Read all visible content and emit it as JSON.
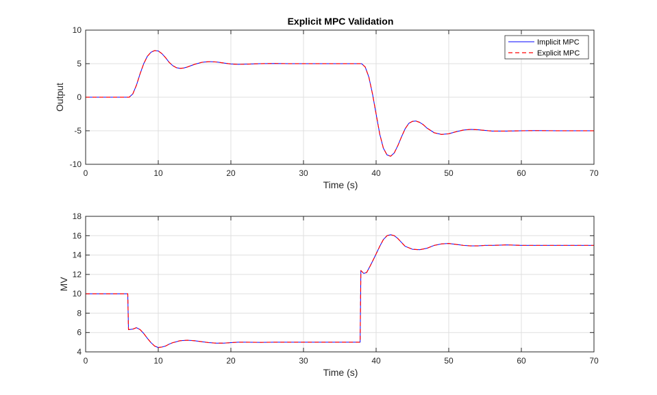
{
  "colors": {
    "background": "#ffffff",
    "axes_box": "#262626",
    "grid": "#dfdfdf",
    "implicit": "#0000ff",
    "explicit": "#ff0000"
  },
  "chart_data": [
    {
      "type": "line",
      "title": "Explicit MPC Validation",
      "xlabel": "Time (s)",
      "ylabel": "Output",
      "xlim": [
        0,
        70
      ],
      "ylim": [
        -10,
        10
      ],
      "xticks": [
        0,
        10,
        20,
        30,
        40,
        50,
        60,
        70
      ],
      "yticks": [
        -10,
        -5,
        0,
        5,
        10
      ],
      "xtick_labels": [
        "0",
        "10",
        "20",
        "30",
        "40",
        "50",
        "60",
        "70"
      ],
      "ytick_labels": [
        "-10",
        "-5",
        "0",
        "5",
        "10"
      ],
      "grid": true,
      "legend": {
        "placement": "top-right",
        "entries": [
          "Implicit MPC",
          "Explicit MPC"
        ]
      },
      "series": [
        {
          "name": "Implicit MPC",
          "style": "solid",
          "x": [
            0,
            6,
            6.5,
            7,
            7.5,
            8,
            8.5,
            9,
            9.5,
            10,
            10.5,
            11,
            11.5,
            12,
            12.5,
            13,
            13.5,
            14,
            15,
            16,
            17,
            18,
            19,
            20,
            21,
            22,
            24,
            26,
            28,
            30,
            32,
            34,
            36,
            38,
            38.5,
            39,
            39.5,
            40,
            40.5,
            41,
            41.5,
            42,
            42.5,
            43,
            43.5,
            44,
            44.5,
            45,
            45.5,
            46,
            46.5,
            47,
            48,
            49,
            50,
            51,
            52,
            53,
            54,
            55,
            56,
            58,
            60,
            62,
            65,
            70
          ],
          "y": [
            0,
            0,
            0.5,
            1.8,
            3.5,
            5.0,
            6.1,
            6.7,
            6.95,
            6.9,
            6.5,
            5.9,
            5.2,
            4.7,
            4.4,
            4.3,
            4.35,
            4.5,
            4.9,
            5.2,
            5.3,
            5.25,
            5.1,
            4.95,
            4.9,
            4.92,
            5.0,
            5.03,
            5.0,
            5.0,
            5.0,
            5.0,
            5.0,
            5.0,
            4.5,
            3.0,
            0.5,
            -2.5,
            -5.5,
            -7.6,
            -8.6,
            -8.8,
            -8.3,
            -7.2,
            -5.9,
            -4.7,
            -3.9,
            -3.6,
            -3.55,
            -3.75,
            -4.1,
            -4.6,
            -5.3,
            -5.55,
            -5.45,
            -5.15,
            -4.9,
            -4.8,
            -4.85,
            -4.95,
            -5.05,
            -5.05,
            -5.0,
            -4.98,
            -5.0,
            -5.0
          ]
        },
        {
          "name": "Explicit MPC",
          "style": "dashed",
          "x": [
            0,
            6,
            6.5,
            7,
            7.5,
            8,
            8.5,
            9,
            9.5,
            10,
            10.5,
            11,
            11.5,
            12,
            12.5,
            13,
            13.5,
            14,
            15,
            16,
            17,
            18,
            19,
            20,
            21,
            22,
            24,
            26,
            28,
            30,
            32,
            34,
            36,
            38,
            38.5,
            39,
            39.5,
            40,
            40.5,
            41,
            41.5,
            42,
            42.5,
            43,
            43.5,
            44,
            44.5,
            45,
            45.5,
            46,
            46.5,
            47,
            48,
            49,
            50,
            51,
            52,
            53,
            54,
            55,
            56,
            58,
            60,
            62,
            65,
            70
          ],
          "y": [
            0,
            0,
            0.5,
            1.8,
            3.5,
            5.0,
            6.1,
            6.7,
            6.95,
            6.9,
            6.5,
            5.9,
            5.2,
            4.7,
            4.4,
            4.3,
            4.35,
            4.5,
            4.9,
            5.2,
            5.3,
            5.25,
            5.1,
            4.95,
            4.9,
            4.92,
            5.0,
            5.03,
            5.0,
            5.0,
            5.0,
            5.0,
            5.0,
            5.0,
            4.5,
            3.0,
            0.5,
            -2.5,
            -5.5,
            -7.6,
            -8.6,
            -8.8,
            -8.3,
            -7.2,
            -5.9,
            -4.7,
            -3.9,
            -3.6,
            -3.55,
            -3.75,
            -4.1,
            -4.6,
            -5.3,
            -5.55,
            -5.45,
            -5.15,
            -4.9,
            -4.8,
            -4.85,
            -4.95,
            -5.05,
            -5.05,
            -5.0,
            -4.98,
            -5.0,
            -5.0
          ]
        }
      ]
    },
    {
      "type": "line",
      "title": "",
      "xlabel": "Time (s)",
      "ylabel": "MV",
      "xlim": [
        0,
        70
      ],
      "ylim": [
        4,
        18
      ],
      "xticks": [
        0,
        10,
        20,
        30,
        40,
        50,
        60,
        70
      ],
      "yticks": [
        4,
        6,
        8,
        10,
        12,
        14,
        16,
        18
      ],
      "xtick_labels": [
        "0",
        "10",
        "20",
        "30",
        "40",
        "50",
        "60",
        "70"
      ],
      "ytick_labels": [
        "4",
        "6",
        "8",
        "10",
        "12",
        "14",
        "16",
        "18"
      ],
      "grid": true,
      "series": [
        {
          "name": "Implicit MPC",
          "style": "solid",
          "x": [
            0,
            5.8,
            5.9,
            6.5,
            7.0,
            7.5,
            8.0,
            8.5,
            9.0,
            9.5,
            10.0,
            10.5,
            11.0,
            11.5,
            12,
            13,
            14,
            15,
            16,
            17,
            18,
            19,
            20,
            21,
            22,
            24,
            26,
            28,
            30,
            32,
            34,
            36,
            37.8,
            37.9,
            38.3,
            38.7,
            39.2,
            39.8,
            40.5,
            41,
            41.5,
            42,
            42.5,
            43,
            43.5,
            44,
            45,
            46,
            47,
            48,
            49,
            50,
            51,
            52,
            53,
            54,
            55,
            56,
            58,
            60,
            62,
            65,
            70
          ],
          "y": [
            10,
            10,
            6.3,
            6.35,
            6.5,
            6.3,
            5.9,
            5.4,
            4.95,
            4.6,
            4.45,
            4.5,
            4.6,
            4.8,
            4.95,
            5.15,
            5.2,
            5.15,
            5.05,
            4.95,
            4.9,
            4.9,
            4.95,
            5.0,
            5.0,
            4.98,
            5.0,
            5.0,
            5.0,
            5.0,
            5.0,
            5.0,
            5.0,
            12.4,
            12.1,
            12.2,
            12.9,
            13.8,
            14.9,
            15.6,
            16.0,
            16.1,
            16.0,
            15.7,
            15.3,
            14.9,
            14.6,
            14.55,
            14.7,
            15.0,
            15.15,
            15.2,
            15.1,
            15.0,
            14.95,
            14.95,
            15.0,
            15.0,
            15.05,
            15.0,
            15.0,
            15.0,
            15.0
          ]
        },
        {
          "name": "Explicit MPC",
          "style": "dashed",
          "x": [
            0,
            5.8,
            5.9,
            6.5,
            7.0,
            7.5,
            8.0,
            8.5,
            9.0,
            9.5,
            10.0,
            10.5,
            11.0,
            11.5,
            12,
            13,
            14,
            15,
            16,
            17,
            18,
            19,
            20,
            21,
            22,
            24,
            26,
            28,
            30,
            32,
            34,
            36,
            37.8,
            37.9,
            38.3,
            38.7,
            39.2,
            39.8,
            40.5,
            41,
            41.5,
            42,
            42.5,
            43,
            43.5,
            44,
            45,
            46,
            47,
            48,
            49,
            50,
            51,
            52,
            53,
            54,
            55,
            56,
            58,
            60,
            62,
            65,
            70
          ],
          "y": [
            10,
            10,
            6.3,
            6.35,
            6.5,
            6.3,
            5.9,
            5.4,
            4.95,
            4.6,
            4.45,
            4.5,
            4.6,
            4.8,
            4.95,
            5.15,
            5.2,
            5.15,
            5.05,
            4.95,
            4.9,
            4.9,
            4.95,
            5.0,
            5.0,
            4.98,
            5.0,
            5.0,
            5.0,
            5.0,
            5.0,
            5.0,
            5.0,
            12.4,
            12.1,
            12.2,
            12.9,
            13.8,
            14.9,
            15.6,
            16.0,
            16.1,
            16.0,
            15.7,
            15.3,
            14.9,
            14.6,
            14.55,
            14.7,
            15.0,
            15.15,
            15.2,
            15.1,
            15.0,
            14.95,
            14.95,
            15.0,
            15.0,
            15.05,
            15.0,
            15.0,
            15.0,
            15.0
          ]
        }
      ]
    }
  ]
}
